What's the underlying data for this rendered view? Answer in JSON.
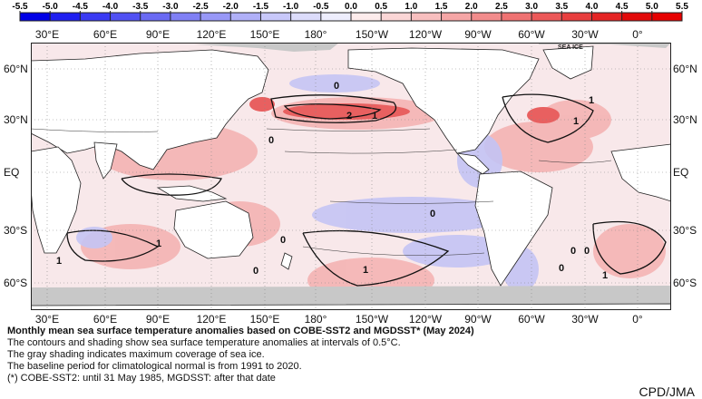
{
  "colorbar": {
    "ticks": [
      "-5.5",
      "-5.0",
      "-4.5",
      "-4.0",
      "-3.5",
      "-3.0",
      "-2.5",
      "-2.0",
      "-1.5",
      "-1.0",
      "-0.5",
      "0.0",
      "0.5",
      "1.0",
      "1.5",
      "2.0",
      "2.5",
      "3.0",
      "3.5",
      "4.0",
      "4.5",
      "5.0",
      "5.5"
    ],
    "colors": [
      "#0000e6",
      "#1f1ff0",
      "#3b3bf3",
      "#5151f3",
      "#6a6af3",
      "#8080f5",
      "#9898f7",
      "#b0b0f8",
      "#c8c8fa",
      "#dcdcfb",
      "#eeeefd",
      "#fdecec",
      "#fbd6d6",
      "#f8bfbf",
      "#f5a6a6",
      "#f28c8c",
      "#ef7272",
      "#ec5858",
      "#e83e3e",
      "#e52424",
      "#e20a0a",
      "#e60000"
    ]
  },
  "map": {
    "lon_labels": [
      "30°E",
      "60°E",
      "90°E",
      "120°E",
      "150°E",
      "180°",
      "150°W",
      "120°W",
      "90°W",
      "60°W",
      "30°W",
      "0°"
    ],
    "lat_labels_left": [
      "60°N",
      "30°N",
      "EQ",
      "30°S",
      "60°S"
    ],
    "lat_labels_right": [
      "60°N",
      "30°N",
      "EQ",
      "30°S",
      "60°S"
    ],
    "sea_ice_label": "SEA ICE",
    "contour_labels": [
      "0",
      "2",
      "1",
      "1",
      "1",
      "0",
      "1",
      "0",
      "1",
      "0",
      "1",
      "0",
      "0",
      "0",
      "1",
      "0"
    ],
    "colors": {
      "land": "#ffffff",
      "sea_ice": "#c8c8c8",
      "warm": "#f4b0b0",
      "strong_warm": "#e86060",
      "cool": "#c4c4f4",
      "neutral_ocean": "#f8e8ea"
    }
  },
  "caption": {
    "title": "Monthly mean sea surface temperature anomalies based on COBE-SST2 and MGDSST* (May 2024)",
    "lines": [
      "The contours and shading show sea surface temperature anomalies at intervals of 0.5°C.",
      "The gray shading indicates maximum coverage of sea ice.",
      "The baseline period for climatological normal is from 1991 to 2020.",
      "(*) COBE-SST2: until 31 May 1985, MGDSST: after that date"
    ]
  },
  "credit": "CPD/JMA"
}
